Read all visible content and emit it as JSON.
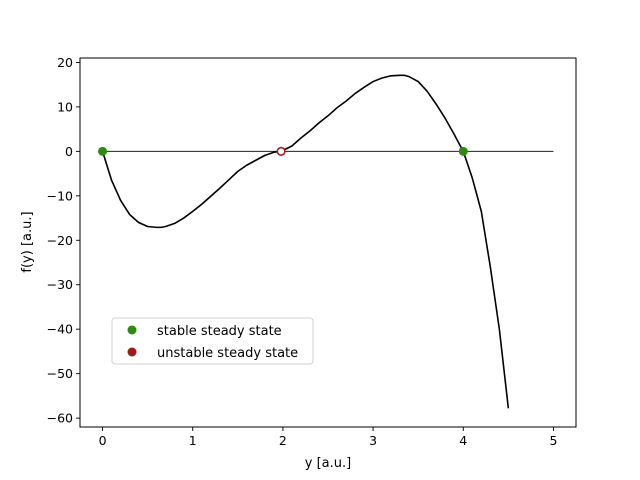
{
  "chart_data": {
    "type": "line",
    "title": "",
    "xlabel": "y [a.u.]",
    "ylabel": "f(y) [a.u.]",
    "xlim": [
      -0.25,
      5.25
    ],
    "ylim": [
      -62,
      21
    ],
    "xticks": [
      0,
      1,
      2,
      3,
      4,
      5
    ],
    "yticks": [
      -60,
      -50,
      -40,
      -30,
      -20,
      -10,
      0,
      10,
      20
    ],
    "grid": false,
    "legend_position": "lower-left",
    "series": [
      {
        "name": "",
        "color": "#000000",
        "x": [
          0,
          0.1,
          0.2,
          0.3,
          0.4,
          0.5,
          0.6,
          0.65,
          0.7,
          0.8,
          0.9,
          1.0,
          1.1,
          1.2,
          1.3,
          1.4,
          1.5,
          1.6,
          1.7,
          1.8,
          1.9,
          1.98,
          2.1,
          2.2,
          2.3,
          2.4,
          2.5,
          2.6,
          2.7,
          2.8,
          2.9,
          3.0,
          3.1,
          3.2,
          3.3,
          3.35,
          3.4,
          3.5,
          3.6,
          3.7,
          3.8,
          3.9,
          4.0,
          4.1,
          4.2,
          4.3,
          4.4,
          4.5
        ],
        "y": [
          0,
          -6.5,
          -11.0,
          -14.2,
          -16.0,
          -16.9,
          -17.1,
          -17.1,
          -16.9,
          -16.2,
          -15.0,
          -13.5,
          -11.9,
          -10.1,
          -8.3,
          -6.4,
          -4.5,
          -3.1,
          -2.0,
          -0.9,
          -0.2,
          0.0,
          1.2,
          3.0,
          4.6,
          6.4,
          8.0,
          9.8,
          11.3,
          13.0,
          14.4,
          15.7,
          16.5,
          17.0,
          17.1,
          17.1,
          16.8,
          15.7,
          13.5,
          10.6,
          7.4,
          3.8,
          0.0,
          -6.0,
          -13.5,
          -26.0,
          -40.0,
          -57.8
        ]
      }
    ],
    "reference_line": {
      "y": 0,
      "x_from": 0,
      "x_to": 5,
      "color": "#000000"
    },
    "steady_states": {
      "stable": {
        "label": "stable steady state",
        "color": "#2e8b0f",
        "x": [
          0,
          4
        ],
        "y": [
          0,
          0
        ]
      },
      "unstable": {
        "label": "unstable steady state",
        "color": "#a11a1a",
        "x": [
          1.98
        ],
        "y": [
          0
        ]
      }
    }
  }
}
